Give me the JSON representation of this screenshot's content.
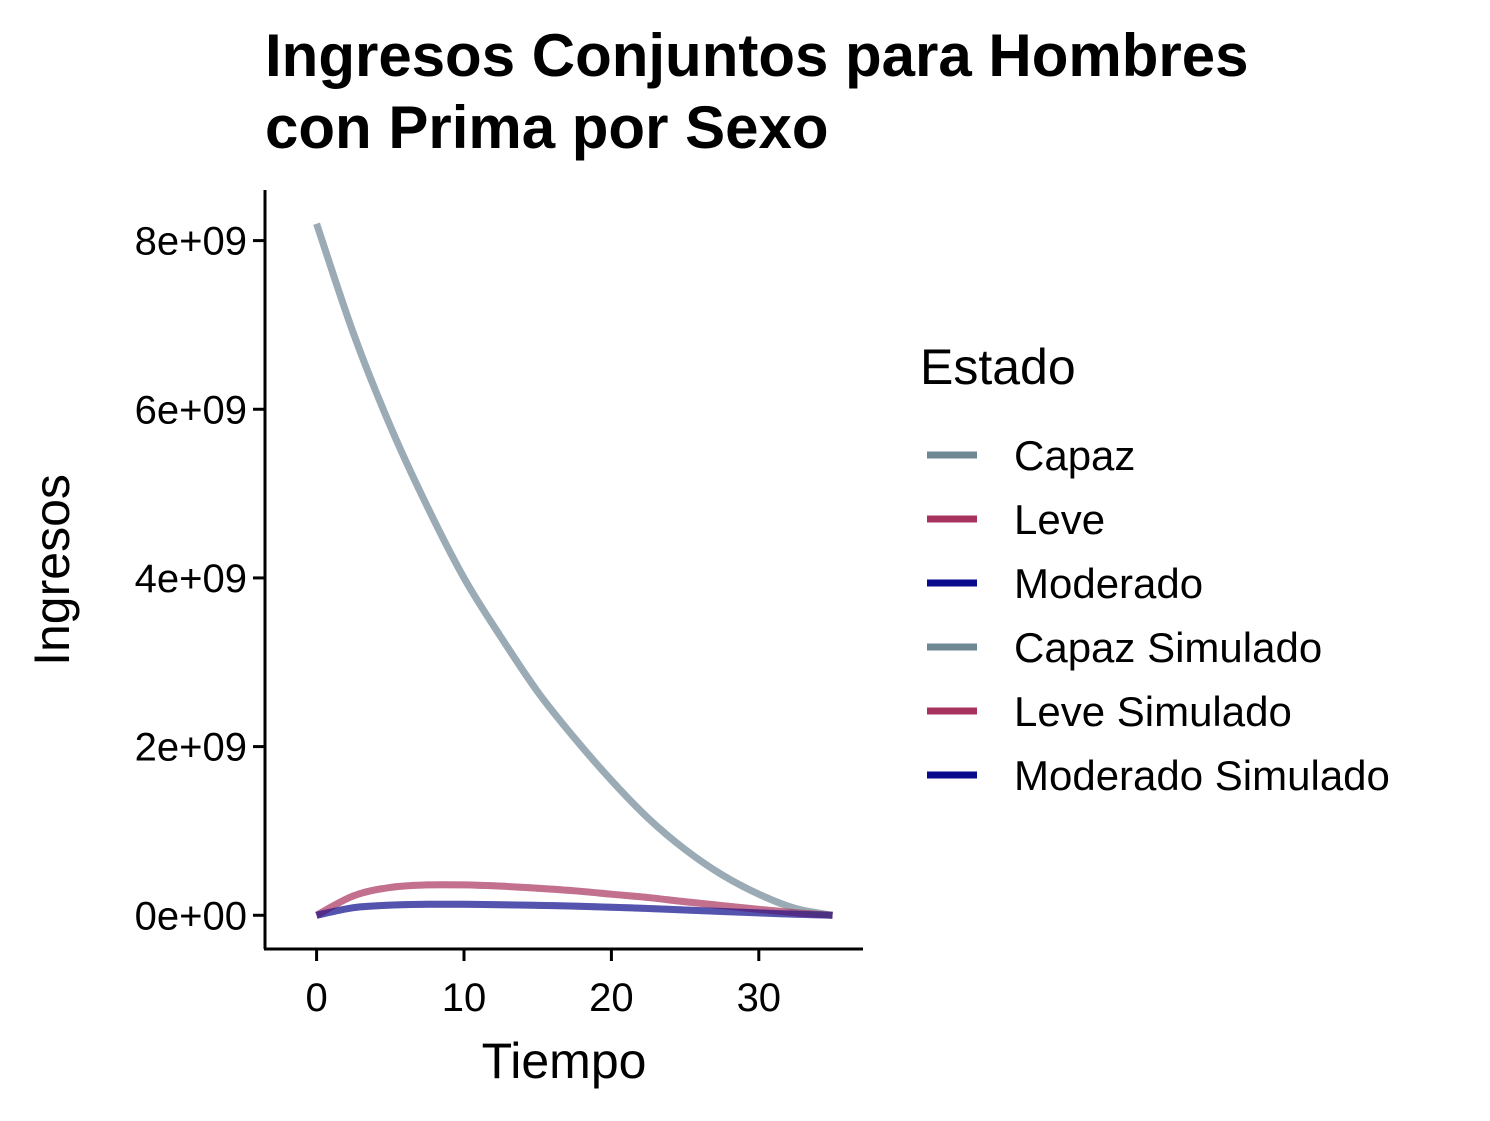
{
  "chart_data": {
    "type": "line",
    "title_lines": [
      "Ingresos Conjuntos para Hombres",
      "con Prima por Sexo"
    ],
    "xlabel": "Tiempo",
    "ylabel": "Ingresos",
    "xlim": [
      -3.5,
      37
    ],
    "ylim": [
      -400000000,
      8600000000
    ],
    "x_ticks": [
      0,
      10,
      20,
      30
    ],
    "x_tick_labels": [
      "0",
      "10",
      "20",
      "30"
    ],
    "y_ticks": [
      0,
      2000000000,
      4000000000,
      6000000000,
      8000000000
    ],
    "y_tick_labels": [
      "0e+00",
      "2e+09",
      "4e+09",
      "6e+09",
      "8e+09"
    ],
    "grid": false,
    "legend": {
      "title": "Estado",
      "position": "right",
      "entries": [
        {
          "label": "Capaz",
          "color": "#6E8894"
        },
        {
          "label": "Leve",
          "color": "#A8325E"
        },
        {
          "label": "Moderado",
          "color": "#0A0A8C"
        },
        {
          "label": "Capaz Simulado",
          "color": "#6E8894"
        },
        {
          "label": "Leve Simulado",
          "color": "#A8325E"
        },
        {
          "label": "Moderado Simulado",
          "color": "#0A0A8C"
        }
      ]
    },
    "x": [
      0,
      2.5,
      5,
      7.5,
      10,
      12.5,
      15,
      17.5,
      20,
      22.5,
      25,
      27.5,
      30,
      32.5,
      35
    ],
    "series": [
      {
        "name": "Capaz",
        "color": "#6E8894",
        "values": [
          8200000000,
          6900000000,
          5800000000,
          4850000000,
          4000000000,
          3300000000,
          2650000000,
          2100000000,
          1600000000,
          1150000000,
          780000000,
          480000000,
          250000000,
          80000000,
          0
        ]
      },
      {
        "name": "Leve",
        "color": "#A8325E",
        "values": [
          0,
          230000000,
          330000000,
          360000000,
          360000000,
          345000000,
          320000000,
          290000000,
          250000000,
          210000000,
          160000000,
          115000000,
          70000000,
          30000000,
          0
        ]
      },
      {
        "name": "Moderado",
        "color": "#0A0A8C",
        "values": [
          0,
          90000000,
          120000000,
          130000000,
          130000000,
          125000000,
          118000000,
          108000000,
          95000000,
          80000000,
          62000000,
          45000000,
          28000000,
          12000000,
          0
        ]
      },
      {
        "name": "Capaz Simulado",
        "color": "#6E8894",
        "values": [
          8200000000,
          6900000000,
          5800000000,
          4850000000,
          4000000000,
          3300000000,
          2650000000,
          2100000000,
          1600000000,
          1150000000,
          780000000,
          480000000,
          250000000,
          80000000,
          0
        ]
      },
      {
        "name": "Leve Simulado",
        "color": "#A8325E",
        "values": [
          0,
          230000000,
          330000000,
          360000000,
          360000000,
          345000000,
          320000000,
          290000000,
          250000000,
          210000000,
          160000000,
          115000000,
          70000000,
          30000000,
          0
        ]
      },
      {
        "name": "Moderado Simulado",
        "color": "#0A0A8C",
        "values": [
          0,
          90000000,
          120000000,
          130000000,
          130000000,
          125000000,
          118000000,
          108000000,
          95000000,
          80000000,
          62000000,
          45000000,
          28000000,
          12000000,
          0
        ]
      }
    ]
  }
}
